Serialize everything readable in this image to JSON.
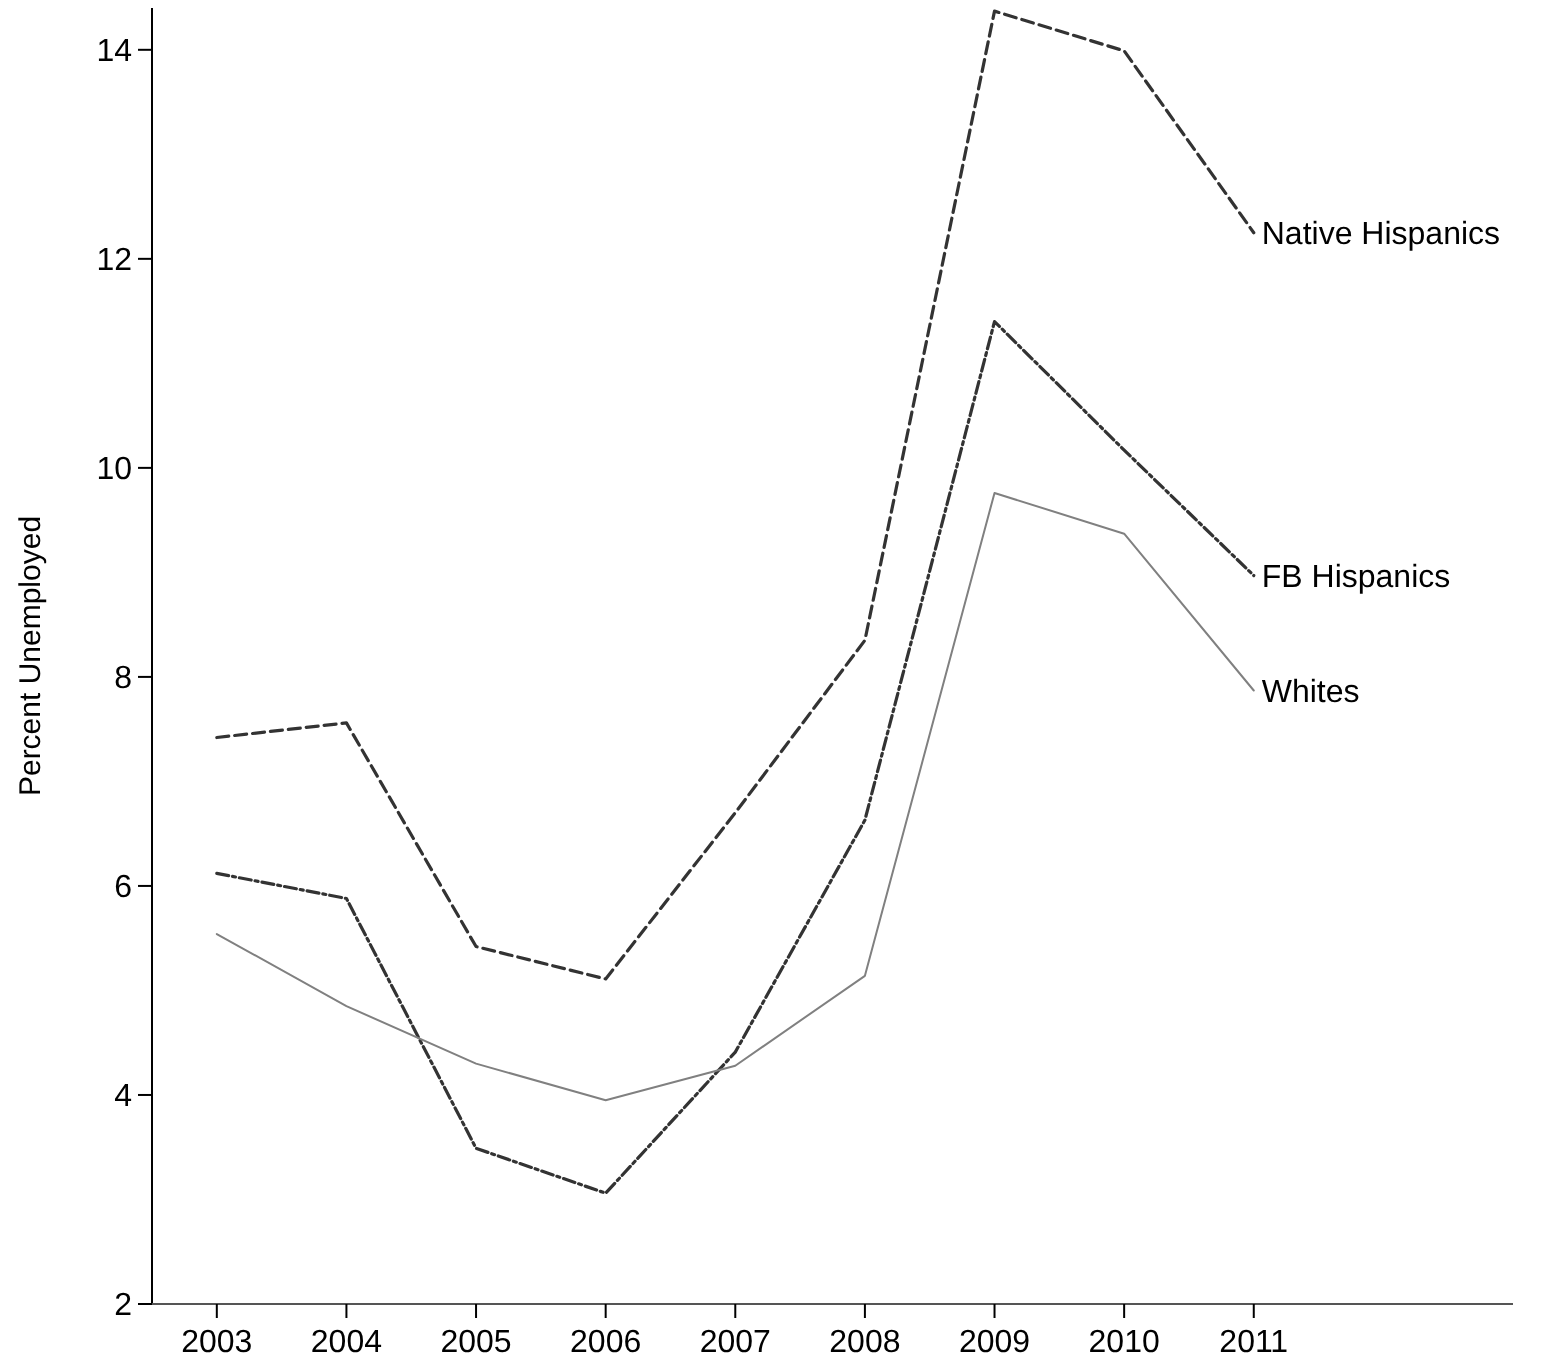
{
  "chart_data": {
    "type": "line",
    "ylabel": "Percent Unemployed",
    "x": [
      2003,
      2004,
      2005,
      2006,
      2007,
      2008,
      2009,
      2010,
      2011
    ],
    "xlim": [
      2002.5,
      2013
    ],
    "xticks": [
      2003,
      2004,
      2005,
      2006,
      2007,
      2008,
      2009,
      2010,
      2011
    ],
    "ylim": [
      2,
      14.4
    ],
    "yticks": [
      2,
      4,
      6,
      8,
      10,
      12,
      14
    ],
    "grid": false,
    "marker": "none",
    "series": [
      {
        "name": "Native Hispanics",
        "color": "#333333",
        "line_style": "dashed",
        "values": [
          7.42,
          7.56,
          5.42,
          5.11,
          6.7,
          8.35,
          14.37,
          13.99,
          12.25
        ]
      },
      {
        "name": "FB Hispanics",
        "color": "#333333",
        "line_style": "dotted",
        "values": [
          6.12,
          5.88,
          3.49,
          3.06,
          4.41,
          6.63,
          11.4,
          10.17,
          8.97
        ]
      },
      {
        "name": "Whites",
        "color": "#808080",
        "line_style": "solid",
        "values": [
          5.54,
          4.85,
          4.3,
          3.95,
          4.28,
          5.14,
          9.76,
          9.37,
          7.87
        ]
      }
    ]
  }
}
